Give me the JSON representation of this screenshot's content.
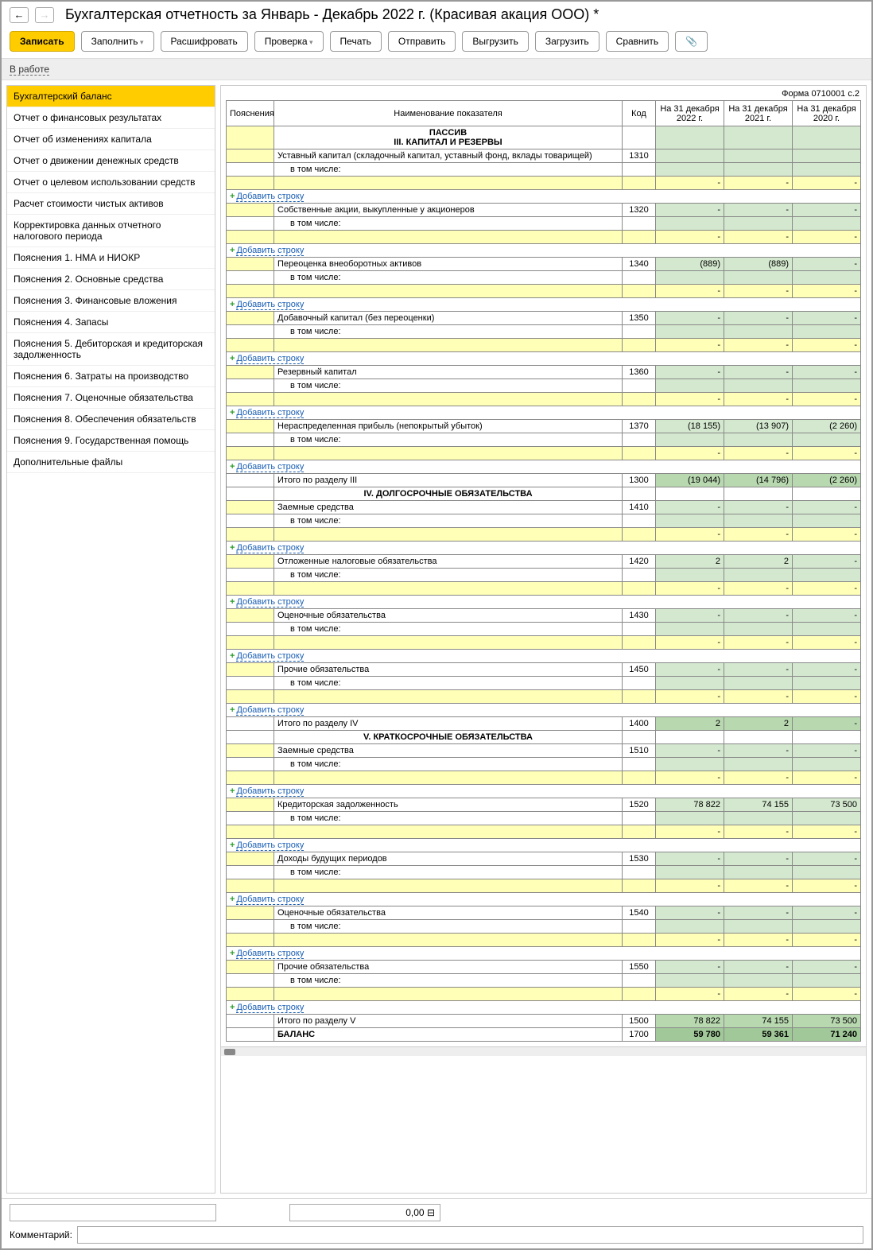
{
  "title": "Бухгалтерская отчетность за Январь - Декабрь 2022 г. (Красивая акация ООО) *",
  "toolbar": {
    "save": "Записать",
    "fill": "Заполнить",
    "decode": "Расшифровать",
    "check": "Проверка",
    "print": "Печать",
    "send": "Отправить",
    "upload": "Выгрузить",
    "load": "Загрузить",
    "compare": "Сравнить"
  },
  "status": "В работе",
  "sidebar": [
    "Бухгалтерский баланс",
    "Отчет о финансовых результатах",
    "Отчет об изменениях капитала",
    "Отчет о движении денежных средств",
    "Отчет о целевом использовании средств",
    "Расчет стоимости чистых активов",
    "Корректировка данных отчетного налогового периода",
    "Пояснения 1. НМА и НИОКР",
    "Пояснения 2. Основные средства",
    "Пояснения 3. Финансовые вложения",
    "Пояснения 4. Запасы",
    "Пояснения 5. Дебиторская и кредиторская задолженность",
    "Пояснения 6. Затраты на производство",
    "Пояснения 7. Оценочные обязательства",
    "Пояснения 8. Обеспечения обязательств",
    "Пояснения 9. Государственная помощь",
    "Дополнительные файлы"
  ],
  "active_sidebar": 0,
  "form_tag": "Форма 0710001 с.2",
  "headers": {
    "expl": "Пояснения",
    "name": "Наименование показателя",
    "code": "Код",
    "y2022": "На 31 декабря 2022 г.",
    "y2021": "На 31 декабря 2021 г.",
    "y2020": "На 31 декабря 2020 г."
  },
  "labels": {
    "passive": "ПАССИВ",
    "sec3": "III. КАПИТАЛ И РЕЗЕРВЫ",
    "sec4": "IV. ДОЛГОСРОЧНЫЕ ОБЯЗАТЕЛЬСТВА",
    "sec5": "V. КРАТКОСРОЧНЫЕ ОБЯЗАТЕЛЬСТВА",
    "including": "в том числе:",
    "add_row": "Добавить строку",
    "balance": "БАЛАНС"
  },
  "rows": {
    "r1310": {
      "name": "Уставный капитал (складочный капитал, уставный фонд, вклады товарищей)",
      "code": "1310",
      "v22": "",
      "v21": "",
      "v20": ""
    },
    "r1320": {
      "name": "Собственные акции, выкупленные у акционеров",
      "code": "1320",
      "v22": "-",
      "v21": "-",
      "v20": "-"
    },
    "r1340": {
      "name": "Переоценка внеоборотных активов",
      "code": "1340",
      "v22": "(889)",
      "v21": "(889)",
      "v20": "-"
    },
    "r1350": {
      "name": "Добавочный капитал (без переоценки)",
      "code": "1350",
      "v22": "-",
      "v21": "-",
      "v20": "-"
    },
    "r1360": {
      "name": "Резервный капитал",
      "code": "1360",
      "v22": "-",
      "v21": "-",
      "v20": "-"
    },
    "r1370": {
      "name": "Нераспределенная прибыль (непокрытый убыток)",
      "code": "1370",
      "v22": "(18 155)",
      "v21": "(13 907)",
      "v20": "(2 260)"
    },
    "r1300": {
      "name": "Итого по разделу III",
      "code": "1300",
      "v22": "(19 044)",
      "v21": "(14 796)",
      "v20": "(2 260)"
    },
    "r1410": {
      "name": "Заемные средства",
      "code": "1410",
      "v22": "-",
      "v21": "-",
      "v20": "-"
    },
    "r1420": {
      "name": "Отложенные налоговые обязательства",
      "code": "1420",
      "v22": "2",
      "v21": "2",
      "v20": "-"
    },
    "r1430": {
      "name": "Оценочные обязательства",
      "code": "1430",
      "v22": "-",
      "v21": "-",
      "v20": "-"
    },
    "r1450": {
      "name": "Прочие обязательства",
      "code": "1450",
      "v22": "-",
      "v21": "-",
      "v20": "-"
    },
    "r1400": {
      "name": "Итого по разделу IV",
      "code": "1400",
      "v22": "2",
      "v21": "2",
      "v20": "-"
    },
    "r1510": {
      "name": "Заемные средства",
      "code": "1510",
      "v22": "-",
      "v21": "-",
      "v20": "-"
    },
    "r1520": {
      "name": "Кредиторская задолженность",
      "code": "1520",
      "v22": "78 822",
      "v21": "74 155",
      "v20": "73 500"
    },
    "r1530": {
      "name": "Доходы будущих периодов",
      "code": "1530",
      "v22": "-",
      "v21": "-",
      "v20": "-"
    },
    "r1540": {
      "name": "Оценочные обязательства",
      "code": "1540",
      "v22": "-",
      "v21": "-",
      "v20": "-"
    },
    "r1550": {
      "name": "Прочие обязательства",
      "code": "1550",
      "v22": "-",
      "v21": "-",
      "v20": "-"
    },
    "r1500": {
      "name": "Итого по разделу V",
      "code": "1500",
      "v22": "78 822",
      "v21": "74 155",
      "v20": "73 500"
    },
    "r1700": {
      "name": "БАЛАНС",
      "code": "1700",
      "v22": "59 780",
      "v21": "59 361",
      "v20": "71 240"
    }
  },
  "footer": {
    "value": "0,00",
    "comment_label": "Комментарий:"
  },
  "colors": {
    "yellow": "#ffffb8",
    "green": "#d4e8cf",
    "dark_green": "#a0c898",
    "accent": "#ffcc00"
  }
}
